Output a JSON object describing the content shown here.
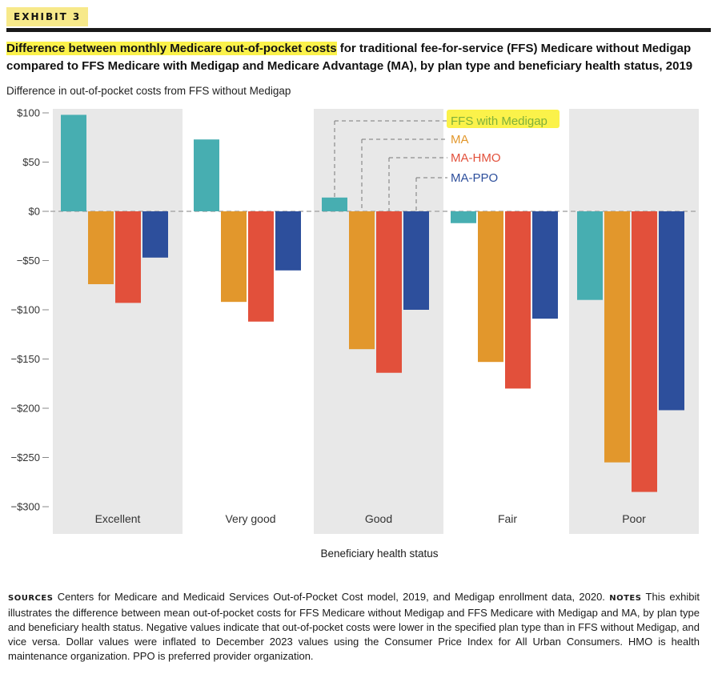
{
  "header": {
    "exhibit_label": "EXHIBIT 3",
    "title_highlight": "Difference between monthly Medicare out-of-pocket costs",
    "title_rest": " for traditional fee-for-service (FFS) Medicare without Medigap compared to FFS Medicare with Medigap and Medicare Advantage (MA), by plan type and beneficiary health status, 2019",
    "subtitle": "Difference in out-of-pocket costs from FFS without Medigap"
  },
  "chart_data": {
    "type": "bar",
    "title": "",
    "xlabel": "Beneficiary health status",
    "ylabel": "Difference in out-of-pocket costs from FFS without Medigap",
    "categories": [
      "Excellent",
      "Very good",
      "Good",
      "Fair",
      "Poor"
    ],
    "ylim": [
      -300,
      100
    ],
    "yticks": [
      100,
      50,
      0,
      -50,
      -100,
      -150,
      -200,
      -250,
      -300
    ],
    "ytick_labels": [
      "$100",
      "$50",
      "$0",
      "−$50",
      "−$100",
      "−$150",
      "−$200",
      "−$250",
      "−$300"
    ],
    "grid": false,
    "legend_placement": "annotation callouts on Good group",
    "series": [
      {
        "name": "FFS with Medigap",
        "color": "#47aeb1",
        "values": [
          98,
          73,
          14,
          -12,
          -90
        ]
      },
      {
        "name": "MA",
        "color": "#e2972c",
        "values": [
          -74,
          -92,
          -140,
          -153,
          -255
        ]
      },
      {
        "name": "MA-HMO",
        "color": "#e2503b",
        "values": [
          -93,
          -112,
          -164,
          -180,
          -285
        ]
      },
      {
        "name": "MA-PPO",
        "color": "#2d4f9c",
        "values": [
          -47,
          -60,
          -100,
          -109,
          -202
        ]
      }
    ],
    "colors": {
      "band": "#e8e8e8",
      "zero_line": "#aaaaaa",
      "legend_highlight": "#fbf24a",
      "ffs_legend_text": "#7fb03a"
    }
  },
  "footer": {
    "sources_label": "SOURCES",
    "sources_text": " Centers for Medicare and Medicaid Services Out-of-Pocket Cost model, 2019, and Medigap enrollment data, 2020. ",
    "notes_label": "NOTES",
    "notes_text": " This exhibit illustrates the difference between mean out-of-pocket costs for FFS Medicare without Medigap and FFS Medicare with Medigap and MA, by plan type and beneficiary health status. Negative values indicate that out-of-pocket costs were lower in the specified plan type than in FFS without Medigap, and vice versa. Dollar values were inflated to December 2023 values using the Consumer Price Index for All Urban Consumers. HMO is health maintenance organization. PPO is preferred provider organization."
  }
}
